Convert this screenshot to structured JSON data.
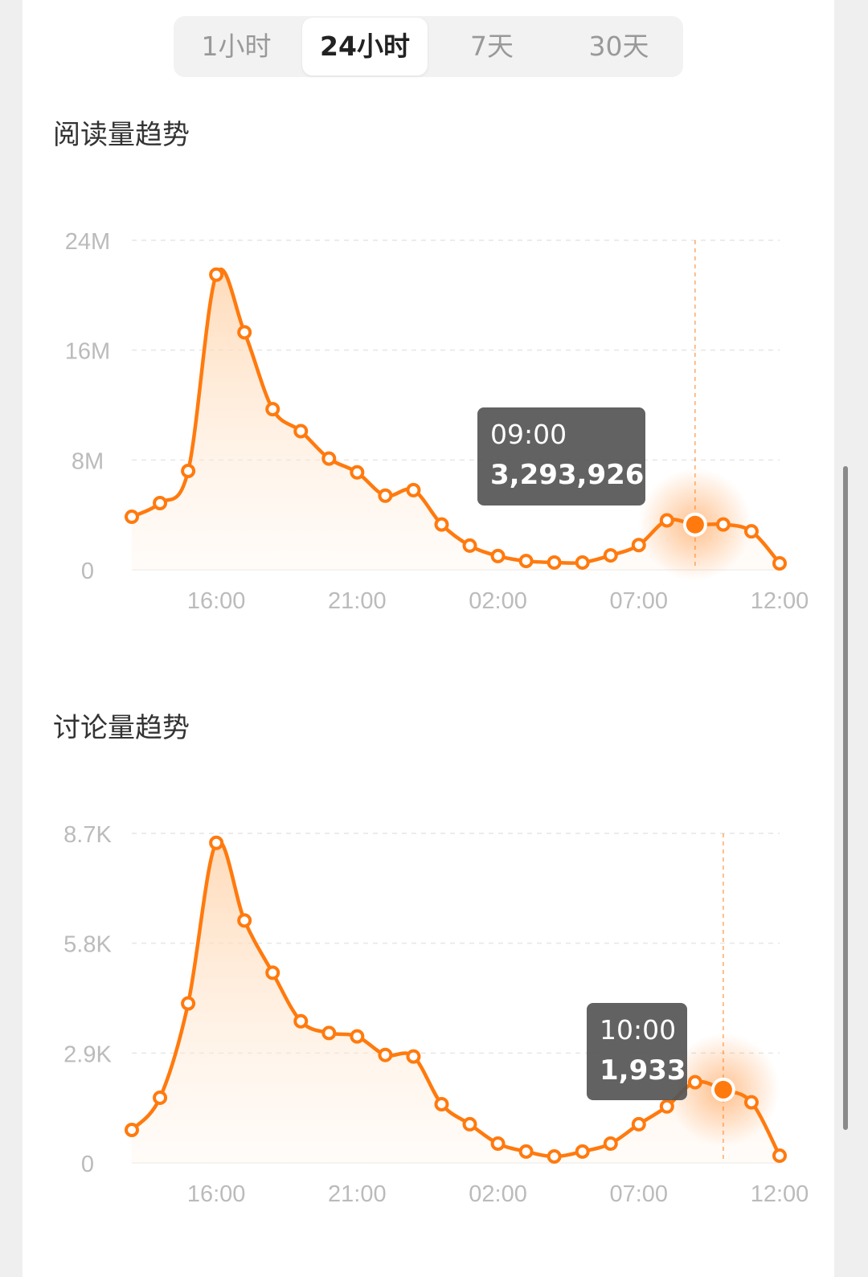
{
  "tabs": [
    {
      "label": "1小时"
    },
    {
      "label": "24小时",
      "active": true
    },
    {
      "label": "7天"
    },
    {
      "label": "30天"
    }
  ],
  "accent": "#FF7A0E",
  "chart_data": [
    {
      "type": "area",
      "title": "阅读量趋势",
      "x": [
        "13:00",
        "14:00",
        "15:00",
        "16:00",
        "17:00",
        "18:00",
        "19:00",
        "20:00",
        "21:00",
        "22:00",
        "23:00",
        "00:00",
        "01:00",
        "02:00",
        "03:00",
        "04:00",
        "05:00",
        "06:00",
        "07:00",
        "08:00",
        "09:00",
        "10:00",
        "11:00",
        "12:00"
      ],
      "values": [
        3860000,
        4860000,
        7200000,
        21500000,
        17300000,
        11700000,
        10100000,
        8100000,
        7100000,
        5400000,
        5800000,
        3300000,
        1760000,
        1000000,
        640000,
        530000,
        530000,
        1050000,
        1800000,
        3600000,
        3293926,
        3300000,
        2800000,
        470000
      ],
      "xticks": [
        "16:00",
        "21:00",
        "02:00",
        "07:00",
        "12:00"
      ],
      "yticks": [
        {
          "value": 0,
          "label": "0"
        },
        {
          "value": 8000000,
          "label": "8M"
        },
        {
          "value": 16000000,
          "label": "16M"
        },
        {
          "value": 24000000,
          "label": "24M"
        }
      ],
      "ylim": [
        0,
        24000000
      ],
      "grid": true,
      "tooltip": {
        "time": "09:00",
        "value": "3,293,926",
        "index": 20
      }
    },
    {
      "type": "area",
      "title": "讨论量趋势",
      "x": [
        "13:00",
        "14:00",
        "15:00",
        "16:00",
        "17:00",
        "18:00",
        "19:00",
        "20:00",
        "21:00",
        "22:00",
        "23:00",
        "00:00",
        "01:00",
        "02:00",
        "03:00",
        "04:00",
        "05:00",
        "06:00",
        "07:00",
        "08:00",
        "09:00",
        "10:00",
        "11:00",
        "12:00"
      ],
      "values": [
        870,
        1720,
        4210,
        8450,
        6400,
        5020,
        3740,
        3430,
        3340,
        2850,
        2810,
        1550,
        1020,
        510,
        300,
        170,
        300,
        510,
        1020,
        1490,
        2130,
        1933,
        1600,
        190
      ],
      "xticks": [
        "16:00",
        "21:00",
        "02:00",
        "07:00",
        "12:00"
      ],
      "yticks": [
        {
          "value": 0,
          "label": "0"
        },
        {
          "value": 2900,
          "label": "2.9K"
        },
        {
          "value": 5800,
          "label": "5.8K"
        },
        {
          "value": 8700,
          "label": "8.7K"
        }
      ],
      "ylim": [
        0,
        8700
      ],
      "grid": true,
      "tooltip": {
        "time": "10:00",
        "value": "1,933",
        "index": 21
      }
    }
  ]
}
